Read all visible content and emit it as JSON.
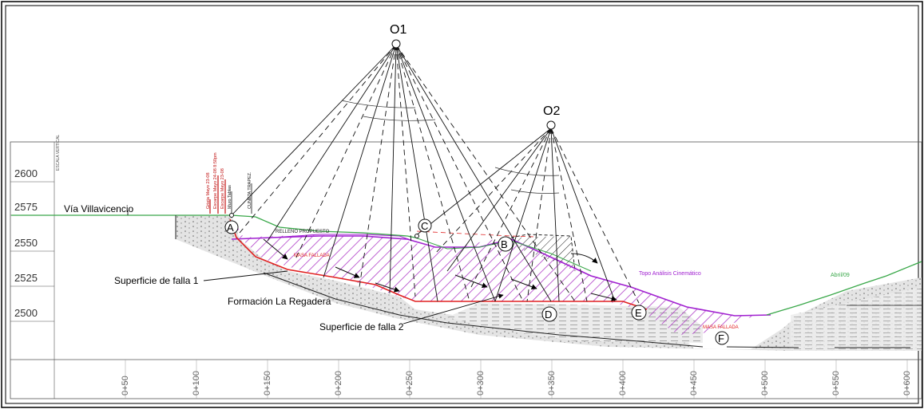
{
  "centers": {
    "o1": "O1",
    "o2": "O2"
  },
  "points": {
    "a": "A",
    "b": "B",
    "c": "C",
    "d": "D",
    "e": "E",
    "f": "F"
  },
  "elevations": [
    "2600",
    "2575",
    "2550",
    "2525",
    "2500"
  ],
  "stations": [
    "0+50",
    "0+100",
    "0+150",
    "0+200",
    "0+250",
    "0+300",
    "0+350",
    "0+400",
    "0+450",
    "0+500",
    "0+550",
    "0+600"
  ],
  "labels": {
    "via": "Vía Villavicencio",
    "falla1": "Superficie de falla 1",
    "falla2": "Superficie de falla 2",
    "formacion": "Formación La Regadera",
    "relleno": "RELLENO PROPUESTO",
    "masa1": "MASA FALLADA",
    "masa2": "MASA FALLADA",
    "topo": "Topo Análisis Cinemático",
    "abril": "Abril/09",
    "cuneta": "CUNETA TRAPEZ.",
    "vertical_left": "ESCALA VERTICAL",
    "boreholes": [
      "Grieta Mayo 23-08",
      "Escarpe Mayo 24-08 8:50pm",
      "Escarpe Mayo 23-08",
      "Muro Tablas"
    ]
  },
  "colors": {
    "hatch": "#b040c8",
    "topo_line": "#a020d0",
    "failure": "#e02020",
    "ground": "#3aa84a",
    "fill_gray": "#d8d8d8"
  }
}
